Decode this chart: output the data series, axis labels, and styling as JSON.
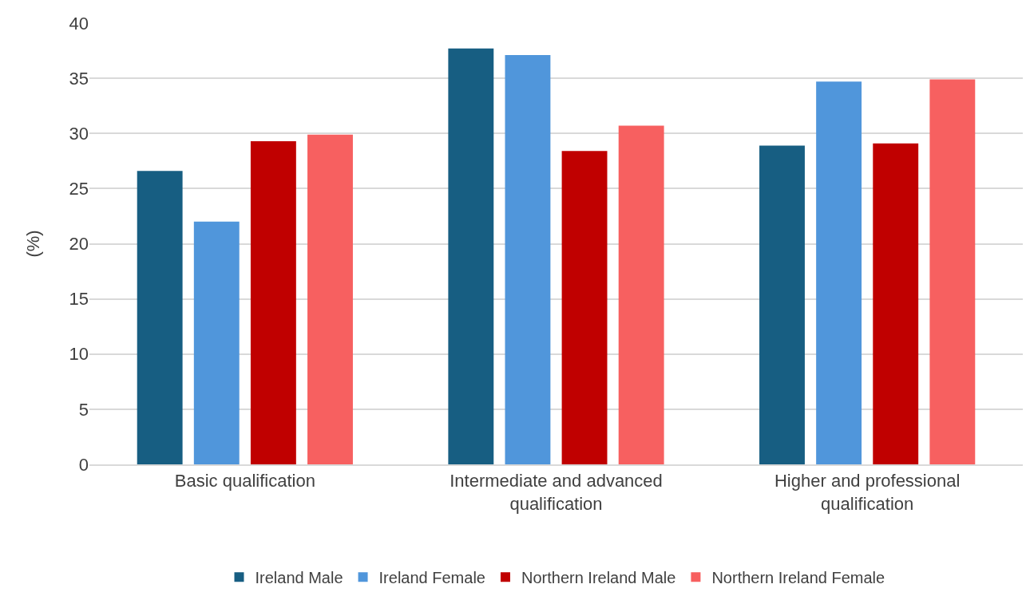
{
  "chart_data": {
    "type": "bar",
    "ylabel": "(%)",
    "categories": [
      "Basic qualification",
      "Intermediate and advanced qualification",
      "Higher and professional qualification"
    ],
    "series": [
      {
        "name": "Ireland Male",
        "color": "#175e82",
        "values": [
          26.6,
          37.7,
          28.9
        ]
      },
      {
        "name": "Ireland Female",
        "color": "#5096db",
        "values": [
          22.0,
          37.1,
          34.7
        ]
      },
      {
        "name": "Northern Ireland Male",
        "color": "#c00000",
        "values": [
          29.3,
          28.4,
          29.1
        ]
      },
      {
        "name": "Northern Ireland Female",
        "color": "#f76060",
        "values": [
          29.9,
          30.7,
          34.9
        ]
      }
    ],
    "ylim": [
      0,
      40
    ],
    "yticks": [
      0,
      5,
      10,
      15,
      20,
      25,
      30,
      35,
      40
    ],
    "grid": "y",
    "legend": "bottom"
  }
}
